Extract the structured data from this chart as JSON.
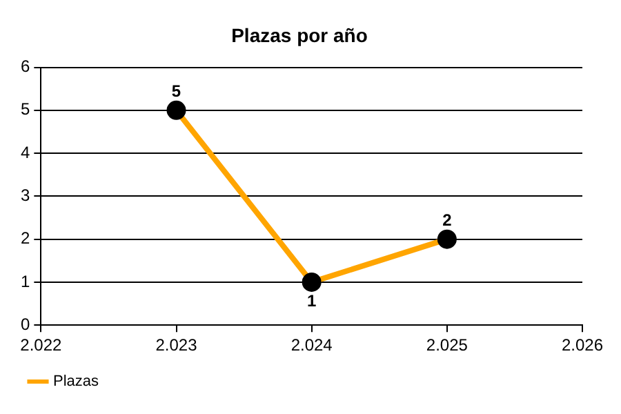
{
  "chart_data": {
    "type": "line",
    "title": "Plazas por año",
    "x": [
      2023,
      2024,
      2025
    ],
    "series": [
      {
        "name": "Plazas",
        "color": "#ffa500",
        "values": [
          5,
          1,
          2
        ]
      }
    ],
    "xlim": [
      2022,
      2026
    ],
    "xticks": [
      {
        "value": 2022,
        "label": "2.022"
      },
      {
        "value": 2023,
        "label": "2.023"
      },
      {
        "value": 2024,
        "label": "2.024"
      },
      {
        "value": 2025,
        "label": "2.025"
      },
      {
        "value": 2026,
        "label": "2.026"
      }
    ],
    "ylim": [
      0,
      6
    ],
    "yticks": [
      0,
      1,
      2,
      3,
      4,
      5,
      6
    ],
    "grid": "y",
    "legend": "bottom left",
    "marker": "circle",
    "line_style": "solid",
    "data_labels": true
  }
}
